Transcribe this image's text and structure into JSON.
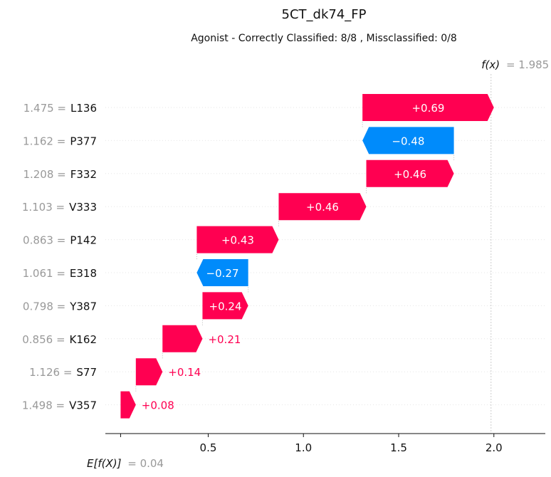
{
  "chart_data": {
    "type": "waterfall",
    "title": "5CT_dk74_FP",
    "subtitle": "Agonist - Correctly Classified: 8/8 , Missclassified: 0/8",
    "base_value": 0.04,
    "base_label": "E[f(X)]",
    "base_value_text": "= 0.04",
    "output_value": 1.985,
    "output_label": "f(x)",
    "output_value_text": "= 1.985",
    "x_ticks": [
      0.5,
      1.0,
      1.5,
      2.0
    ],
    "x_tick_labels": [
      "0.5",
      "1.0",
      "1.5",
      "2.0"
    ],
    "xlim": [
      -0.04,
      2.27
    ],
    "features": [
      {
        "value_text": "1.475 =",
        "name": "L136",
        "contribution": 0.69,
        "label": "+0.69"
      },
      {
        "value_text": "1.162 =",
        "name": "P377",
        "contribution": -0.48,
        "label": "−0.48"
      },
      {
        "value_text": "1.208 =",
        "name": "F332",
        "contribution": 0.46,
        "label": "+0.46"
      },
      {
        "value_text": "1.103 =",
        "name": "V333",
        "contribution": 0.46,
        "label": "+0.46"
      },
      {
        "value_text": "0.863 =",
        "name": "P142",
        "contribution": 0.43,
        "label": "+0.43"
      },
      {
        "value_text": "1.061 =",
        "name": "E318",
        "contribution": -0.27,
        "label": "−0.27"
      },
      {
        "value_text": "0.798 =",
        "name": "Y387",
        "contribution": 0.24,
        "label": "+0.24"
      },
      {
        "value_text": "0.856 =",
        "name": "K162",
        "contribution": 0.21,
        "label": "+0.21"
      },
      {
        "value_text": "1.126 =",
        "name": "S77",
        "contribution": 0.14,
        "label": "+0.14"
      },
      {
        "value_text": "1.498 =",
        "name": "V357",
        "contribution": 0.08,
        "label": "+0.08"
      }
    ],
    "colors": {
      "positive": "#ff0051",
      "negative": "#008bfb",
      "muted": "#999999"
    }
  }
}
